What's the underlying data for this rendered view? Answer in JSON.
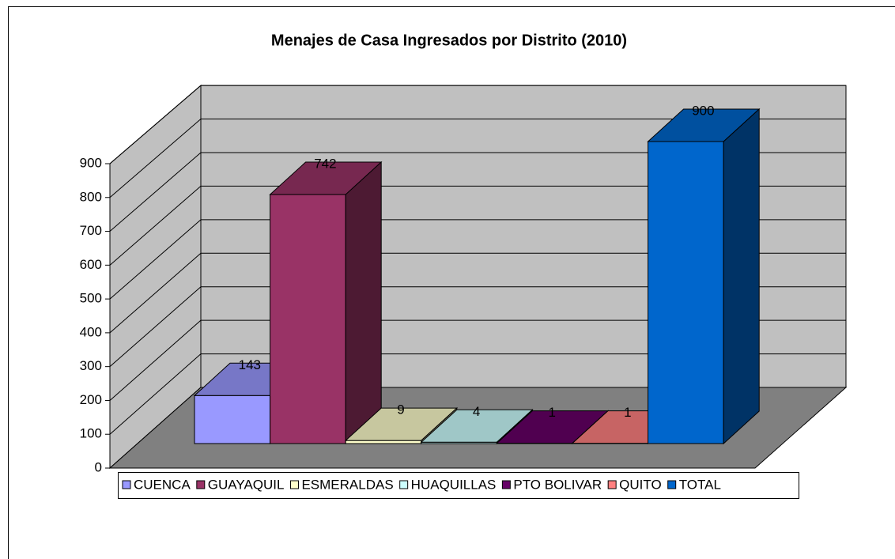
{
  "chart_data": {
    "type": "bar",
    "title": "Menajes de Casa Ingresados por Distrito (2010)",
    "series": [
      {
        "name": "CUENCA",
        "color": "#9999ff",
        "values": [
          143
        ]
      },
      {
        "name": "GUAYAQUIL",
        "color": "#993366",
        "values": [
          742
        ]
      },
      {
        "name": "ESMERALDAS",
        "color": "#ffffcc",
        "values": [
          9
        ]
      },
      {
        "name": "HUAQUILLAS",
        "color": "#ccffff",
        "values": [
          4
        ]
      },
      {
        "name": "PTO BOLIVAR",
        "color": "#660066",
        "values": [
          1
        ]
      },
      {
        "name": "QUITO",
        "color": "#ff8080",
        "values": [
          1
        ]
      },
      {
        "name": "TOTAL",
        "color": "#0066cc",
        "values": [
          900
        ]
      }
    ],
    "ylim": [
      0,
      900
    ],
    "yticks": [
      0,
      100,
      200,
      300,
      400,
      500,
      600,
      700,
      800,
      900
    ],
    "grid": true,
    "legend": "bottom"
  }
}
